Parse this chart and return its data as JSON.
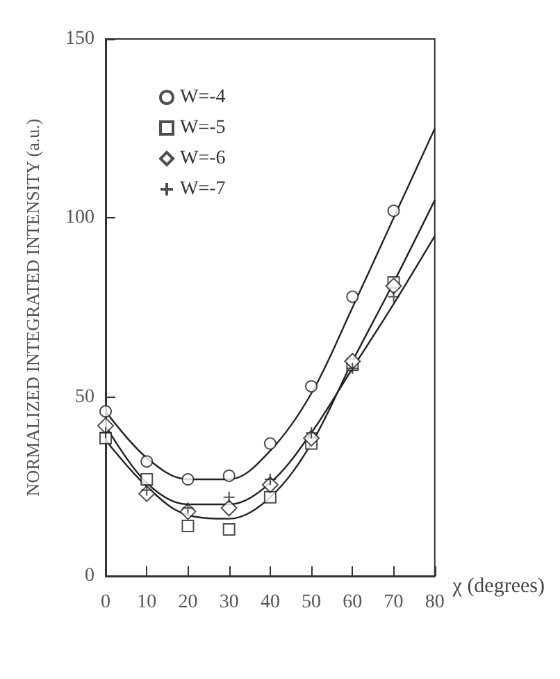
{
  "chart_data": {
    "type": "scatter",
    "xlabel": "χ (degrees)",
    "ylabel": "NORMALIZED INTEGRATED INTENSITY (a.u.)",
    "x": [
      0,
      10,
      20,
      30,
      40,
      50,
      60,
      70
    ],
    "xlim": [
      0,
      80
    ],
    "xticks": [
      0,
      10,
      20,
      30,
      40,
      50,
      60,
      70,
      80
    ],
    "ylim": [
      0,
      150
    ],
    "yticks": [
      0,
      50,
      100,
      150
    ],
    "grid": false,
    "legend": "top left",
    "series": [
      {
        "name": "W=-4",
        "color": "#222222",
        "marker": "circle",
        "values": [
          46,
          32,
          27,
          28,
          37,
          53,
          78,
          102
        ]
      },
      {
        "name": "W=-5",
        "color": "#222222",
        "marker": "square",
        "values": [
          38.5,
          27,
          14,
          13,
          22,
          37,
          59,
          82
        ]
      },
      {
        "name": "W=-6",
        "color": "#222222",
        "marker": "diamond",
        "values": [
          42,
          23,
          18,
          19,
          25.5,
          38.5,
          60,
          81
        ]
      },
      {
        "name": "W=-7",
        "color": "#222222",
        "marker": "cross",
        "values": [
          40,
          24,
          19,
          22,
          27,
          40,
          58,
          78
        ]
      },
      {
        "type": "line",
        "color": "#222222",
        "marker": "none",
        "x": [
          0,
          10,
          20,
          30,
          40,
          50,
          60,
          70,
          80
        ],
        "values": [
          46,
          33,
          27,
          27,
          35,
          51,
          75,
          100,
          125
        ]
      },
      {
        "type": "line",
        "color": "#222222",
        "marker": "none",
        "x": [
          0,
          10,
          20,
          30,
          40,
          50,
          60,
          70,
          80
        ],
        "values": [
          38,
          25,
          17,
          16,
          22,
          37,
          60,
          82,
          105
        ]
      },
      {
        "type": "line",
        "color": "#222222",
        "marker": "none",
        "x": [
          0,
          10,
          20,
          30,
          40,
          50,
          60,
          70,
          80
        ],
        "values": [
          42,
          26,
          20,
          20,
          26,
          40,
          58,
          76,
          95
        ]
      }
    ]
  }
}
